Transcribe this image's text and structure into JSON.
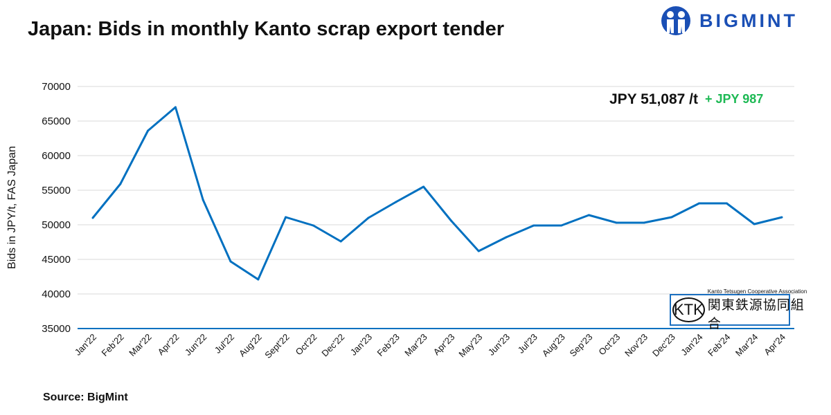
{
  "title": "Japan: Bids in monthly Kanto scrap export tender",
  "brand": "BIGMINT",
  "source": "Source: BigMint",
  "badge": {
    "abbr": "KTK",
    "english": "Kanto Tetsugen Cooperative Association",
    "japanese": "関東鉄源協同組合"
  },
  "annotation": {
    "price": "JPY 51,087 /t",
    "change": "+ JPY 987",
    "change_color": "#1db954"
  },
  "chart_data": {
    "type": "line",
    "title": "Japan: Bids in monthly Kanto scrap export tender",
    "xlabel": "",
    "ylabel": "Bids in JPY/t, FAS Japan",
    "ylim": [
      35000,
      70000
    ],
    "yticks": [
      "35000",
      "40000",
      "45000",
      "50000",
      "55000",
      "60000",
      "65000",
      "70000"
    ],
    "grid": true,
    "line_color": "#0070c0",
    "categories": [
      "Jan'22",
      "Feb'22",
      "Mar'22",
      "Apr'22",
      "Jun'22",
      "Jul'22",
      "Aug'22",
      "Sept'22",
      "Oct'22",
      "Dec'22",
      "Jan'23",
      "Feb'23",
      "Mar'23",
      "Apr'23",
      "May'23",
      "Jun'23",
      "Jul'23",
      "Aug'23",
      "Sep'23",
      "Oct'23",
      "Nov'23",
      "Dec'23",
      "Jan'24",
      "Feb'24",
      "Mar'24",
      "Apr'24"
    ],
    "values": [
      51000,
      55900,
      63600,
      67000,
      53600,
      44700,
      42100,
      51100,
      49900,
      47600,
      51000,
      53300,
      55500,
      50600,
      46200,
      48200,
      49900,
      49900,
      51400,
      50300,
      50300,
      51100,
      53100,
      53100,
      50100,
      51087
    ]
  }
}
